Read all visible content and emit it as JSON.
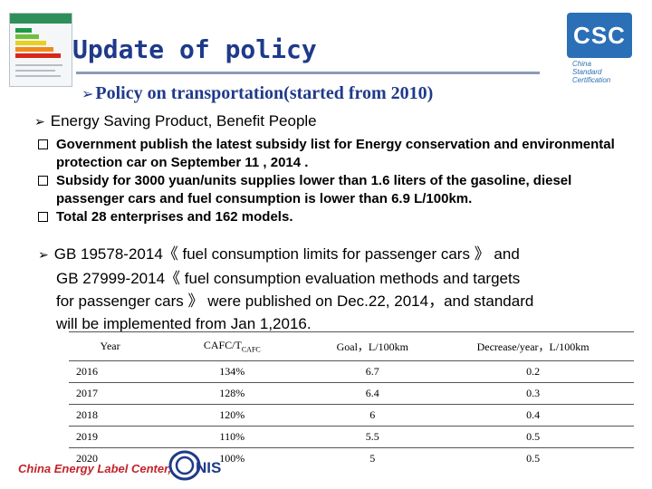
{
  "header": {
    "title": "Update of policy",
    "subtitle": "Policy on transportation(started from 2010)"
  },
  "logo": {
    "name": "CSC",
    "tagline": [
      "China",
      "Standard",
      "Certification"
    ]
  },
  "section1": {
    "heading": "Energy Saving Product, Benefit People",
    "bullets": [
      "Government publish the latest subsidy list for Energy conservation and environmental protection car on September 11 , 2014 .",
      "Subsidy for 3000 yuan/units supplies lower than 1.6 liters of the gasoline, diesel passenger cars and fuel consumption is lower than 6.9 L/100km.",
      "Total 28 enterprises and 162 models."
    ]
  },
  "section2": {
    "lines": [
      "GB 19578-2014《 fuel consumption limits for passenger cars 》 and",
      "GB 27999-2014《 fuel consumption evaluation methods and targets",
      "for passenger cars 》 were published on Dec.22, 2014，and  standard",
      "will be implemented  from Jan 1,2016."
    ]
  },
  "table": {
    "headers": [
      "Year",
      "CAFC/T",
      "CAFC",
      "Goal，L/100km",
      "Decrease/year，L/100km"
    ],
    "rows": [
      [
        "2016",
        "134%",
        "6.7",
        "0.2"
      ],
      [
        "2017",
        "128%",
        "6.4",
        "0.3"
      ],
      [
        "2018",
        "120%",
        "6",
        "0.4"
      ],
      [
        "2019",
        "110%",
        "5.5",
        "0.5"
      ],
      [
        "2020",
        "100%",
        "5",
        "0.5"
      ]
    ]
  },
  "footer": {
    "org": "China Energy Label Center,",
    "logo_text": "NIS"
  },
  "colors": {
    "title": "#1f3a8a",
    "logo_blue": "#2b6fb7",
    "footer_red": "#c4232b"
  }
}
